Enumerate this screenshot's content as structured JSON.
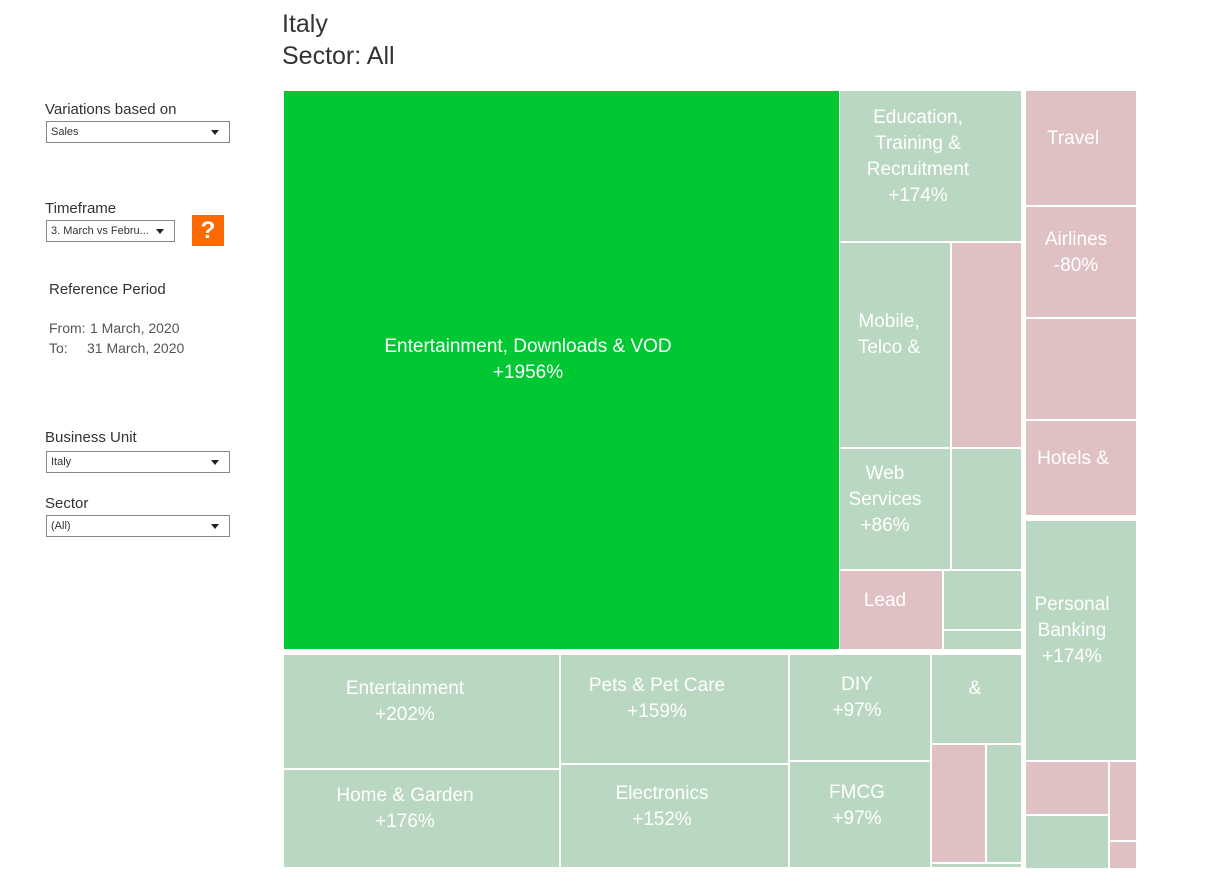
{
  "header": {
    "title": "Italy",
    "subtitle": "Sector: All"
  },
  "sidebar": {
    "variations": {
      "label": "Variations based on",
      "selected": "Sales"
    },
    "timeframe": {
      "label": "Timeframe",
      "selected": "3. March vs Febru...",
      "help": "?"
    },
    "reference_period": {
      "label": "Reference Period",
      "from": {
        "label": "From:",
        "value": "1 March, 2020"
      },
      "to": {
        "label": "To:",
        "value": "31 March, 2020"
      }
    },
    "business_unit": {
      "label": "Business Unit",
      "selected": "Italy"
    },
    "sector": {
      "label": "Sector",
      "selected": "(All)"
    }
  },
  "treemap": {
    "tiles": [
      {
        "lines": [
          "Entertainment, Downloads & VOD",
          "+1956%"
        ]
      },
      {
        "lines": [
          "Education,",
          "Training &",
          "Recruitment",
          "+174%"
        ]
      },
      {
        "lines": [
          "Mobile,",
          "Telco &"
        ]
      },
      {
        "lines": [
          "Web",
          "Services",
          "+86%"
        ]
      },
      {
        "lines": [
          "Lead"
        ]
      },
      {
        "lines": [
          "Travel"
        ]
      },
      {
        "lines": [
          "Airlines",
          "-80%"
        ]
      },
      {
        "lines": [
          "Hotels &"
        ]
      },
      {
        "lines": [
          "Personal",
          "Banking",
          "+174%"
        ]
      },
      {
        "lines": [
          "Entertainment",
          "+202%"
        ]
      },
      {
        "lines": [
          "Home & Garden",
          "+176%"
        ]
      },
      {
        "lines": [
          "Pets & Pet Care",
          "+159%"
        ]
      },
      {
        "lines": [
          "Electronics",
          "+152%"
        ]
      },
      {
        "lines": [
          "DIY",
          "+97%"
        ]
      },
      {
        "lines": [
          "FMCG",
          "+97%"
        ]
      },
      {
        "lines": [
          "&"
        ]
      }
    ]
  }
}
